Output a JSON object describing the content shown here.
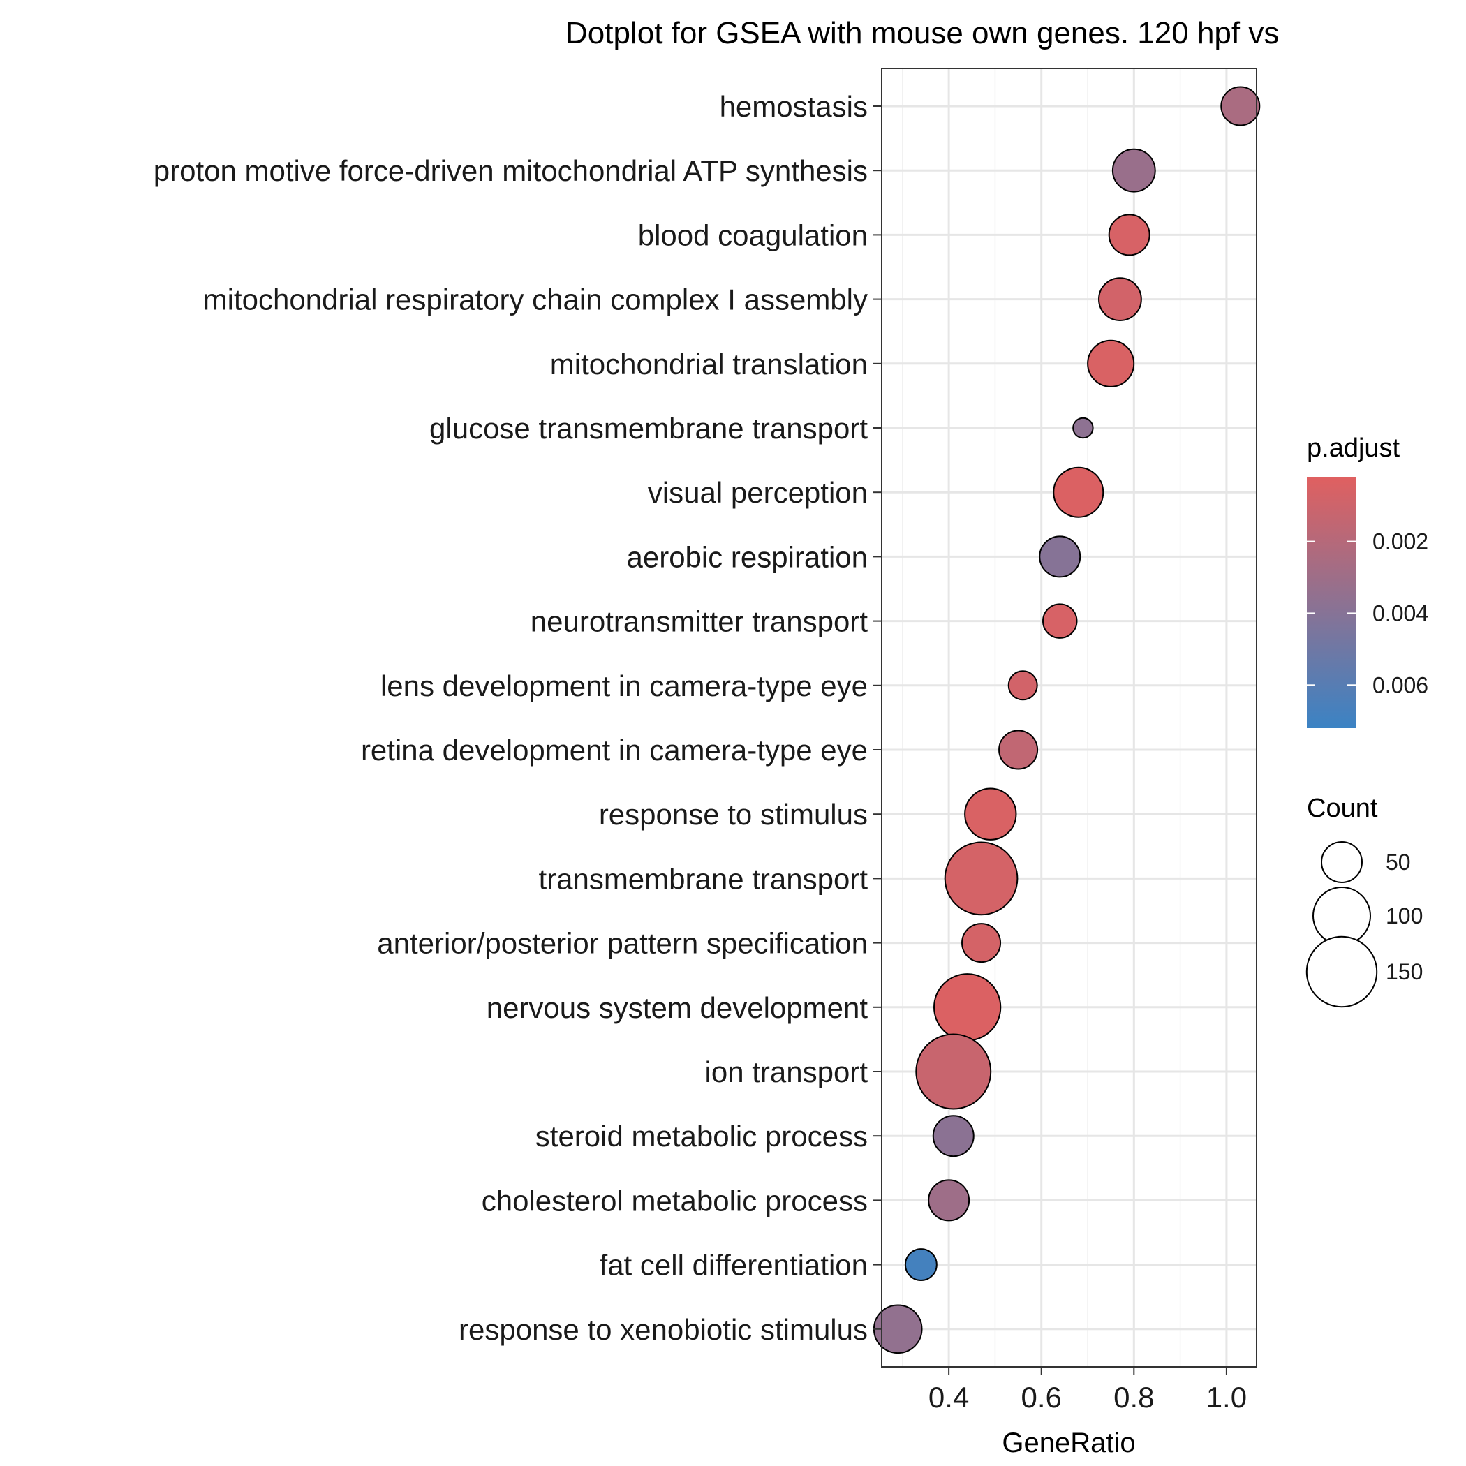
{
  "chart_data": {
    "type": "scatter",
    "title": "Dotplot for GSEA with mouse own genes. 120 hpf vs",
    "xlabel": "GeneRatio",
    "ylabel": "",
    "xlim": [
      0.255,
      1.065
    ],
    "x_ticks": [
      0.4,
      0.6,
      0.8,
      1.0
    ],
    "x_tick_labels": [
      "0.4",
      "0.6",
      "0.8",
      "1.0"
    ],
    "grid": true,
    "legend_position": "right",
    "categories": [
      "hemostasis",
      "proton motive force-driven mitochondrial ATP synthesis",
      "blood coagulation",
      "mitochondrial respiratory chain complex I assembly",
      "mitochondrial translation",
      "glucose transmembrane transport",
      "visual perception",
      "aerobic respiration",
      "neurotransmitter transport",
      "lens development in camera-type eye",
      "retina development in camera-type eye",
      "response to stimulus",
      "transmembrane transport",
      "anterior/posterior pattern specification",
      "nervous system development",
      "ion transport",
      "steroid metabolic process",
      "cholesterol metabolic process",
      "fat cell differentiation",
      "response to xenobiotic stimulus"
    ],
    "points": [
      {
        "term": "hemostasis",
        "gene_ratio": 1.03,
        "count": 45,
        "p_adjust": 0.0025
      },
      {
        "term": "proton motive force-driven mitochondrial ATP synthesis",
        "gene_ratio": 0.8,
        "count": 55,
        "p_adjust": 0.0032
      },
      {
        "term": "blood coagulation",
        "gene_ratio": 0.79,
        "count": 50,
        "p_adjust": 0.0006
      },
      {
        "term": "mitochondrial respiratory chain complex I assembly",
        "gene_ratio": 0.77,
        "count": 55,
        "p_adjust": 0.0008
      },
      {
        "term": "mitochondrial translation",
        "gene_ratio": 0.75,
        "count": 65,
        "p_adjust": 0.0005
      },
      {
        "term": "glucose transmembrane transport",
        "gene_ratio": 0.69,
        "count": 12,
        "p_adjust": 0.0037
      },
      {
        "term": "visual perception",
        "gene_ratio": 0.68,
        "count": 75,
        "p_adjust": 0.0004
      },
      {
        "term": "aerobic respiration",
        "gene_ratio": 0.64,
        "count": 50,
        "p_adjust": 0.004
      },
      {
        "term": "neurotransmitter transport",
        "gene_ratio": 0.64,
        "count": 35,
        "p_adjust": 0.0006
      },
      {
        "term": "lens development in camera-type eye",
        "gene_ratio": 0.56,
        "count": 25,
        "p_adjust": 0.0008
      },
      {
        "term": "retina development in camera-type eye",
        "gene_ratio": 0.55,
        "count": 45,
        "p_adjust": 0.0015
      },
      {
        "term": "response to stimulus",
        "gene_ratio": 0.49,
        "count": 80,
        "p_adjust": 0.0005
      },
      {
        "term": "transmembrane transport",
        "gene_ratio": 0.47,
        "count": 160,
        "p_adjust": 0.0007
      },
      {
        "term": "anterior/posterior pattern specification",
        "gene_ratio": 0.47,
        "count": 45,
        "p_adjust": 0.0007
      },
      {
        "term": "nervous system development",
        "gene_ratio": 0.44,
        "count": 135,
        "p_adjust": 0.0004
      },
      {
        "term": "ion transport",
        "gene_ratio": 0.41,
        "count": 170,
        "p_adjust": 0.0012
      },
      {
        "term": "steroid metabolic process",
        "gene_ratio": 0.41,
        "count": 50,
        "p_adjust": 0.0038
      },
      {
        "term": "cholesterol metabolic process",
        "gene_ratio": 0.4,
        "count": 50,
        "p_adjust": 0.003
      },
      {
        "term": "fat cell differentiation",
        "gene_ratio": 0.34,
        "count": 30,
        "p_adjust": 0.0068
      },
      {
        "term": "response to xenobiotic stimulus",
        "gene_ratio": 0.29,
        "count": 70,
        "p_adjust": 0.0035
      }
    ],
    "color_legend": {
      "title": "p.adjust",
      "range": [
        0.0002,
        0.0072
      ],
      "ticks": [
        0.002,
        0.004,
        0.006
      ],
      "tick_labels": [
        "0.002",
        "0.004",
        "0.006"
      ],
      "low_value_color": "#E06060",
      "high_value_color": "#3B83C4"
    },
    "size_legend": {
      "title": "Count",
      "values": [
        50,
        100,
        150
      ],
      "labels": [
        "50",
        "100",
        "150"
      ]
    }
  }
}
